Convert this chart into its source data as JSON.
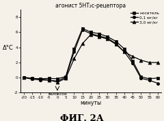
{
  "title": "агонист 5НТ₂с-рецептора",
  "xlabel": "минуты",
  "ylabel": "Δ°C",
  "fig_label": "ФИГ. 2А",
  "naloxon_label": "налоксон",
  "x": [
    -20,
    -15,
    -10,
    -5,
    0,
    5,
    10,
    15,
    20,
    25,
    30,
    35,
    40,
    45,
    50,
    55,
    60
  ],
  "nositel": [
    0.05,
    -0.1,
    -0.15,
    -0.1,
    -0.15,
    0.15,
    3.8,
    6.5,
    6.0,
    5.8,
    5.4,
    4.8,
    3.8,
    2.2,
    0.1,
    -0.15,
    -0.05
  ],
  "dose01": [
    0.0,
    -0.2,
    -0.3,
    -0.35,
    -0.45,
    0.05,
    3.4,
    6.3,
    5.8,
    5.5,
    5.2,
    4.5,
    3.4,
    1.9,
    -0.1,
    -0.35,
    -0.75
  ],
  "dose30": [
    0.0,
    -0.1,
    -0.2,
    -0.3,
    -0.6,
    -0.1,
    2.5,
    4.5,
    5.7,
    5.4,
    5.1,
    4.4,
    3.4,
    2.8,
    2.3,
    2.0,
    2.0
  ],
  "legend": [
    "носитель",
    "0,1 мг/кг",
    "3,0 мг/кг"
  ],
  "colors": [
    "#000000",
    "#000000",
    "#000000"
  ],
  "markers": [
    "s",
    "o",
    "^"
  ],
  "markersizes": [
    3.0,
    3.0,
    3.5
  ],
  "linewidths": [
    0.9,
    0.9,
    0.9
  ],
  "ylim": [
    -2,
    9
  ],
  "yticks": [
    -2,
    0,
    2,
    4,
    6,
    8
  ],
  "xticks": [
    -20,
    -15,
    -10,
    -5,
    0,
    5,
    10,
    15,
    20,
    25,
    30,
    35,
    40,
    45,
    50,
    55,
    60
  ],
  "background": "#f5f0e8"
}
